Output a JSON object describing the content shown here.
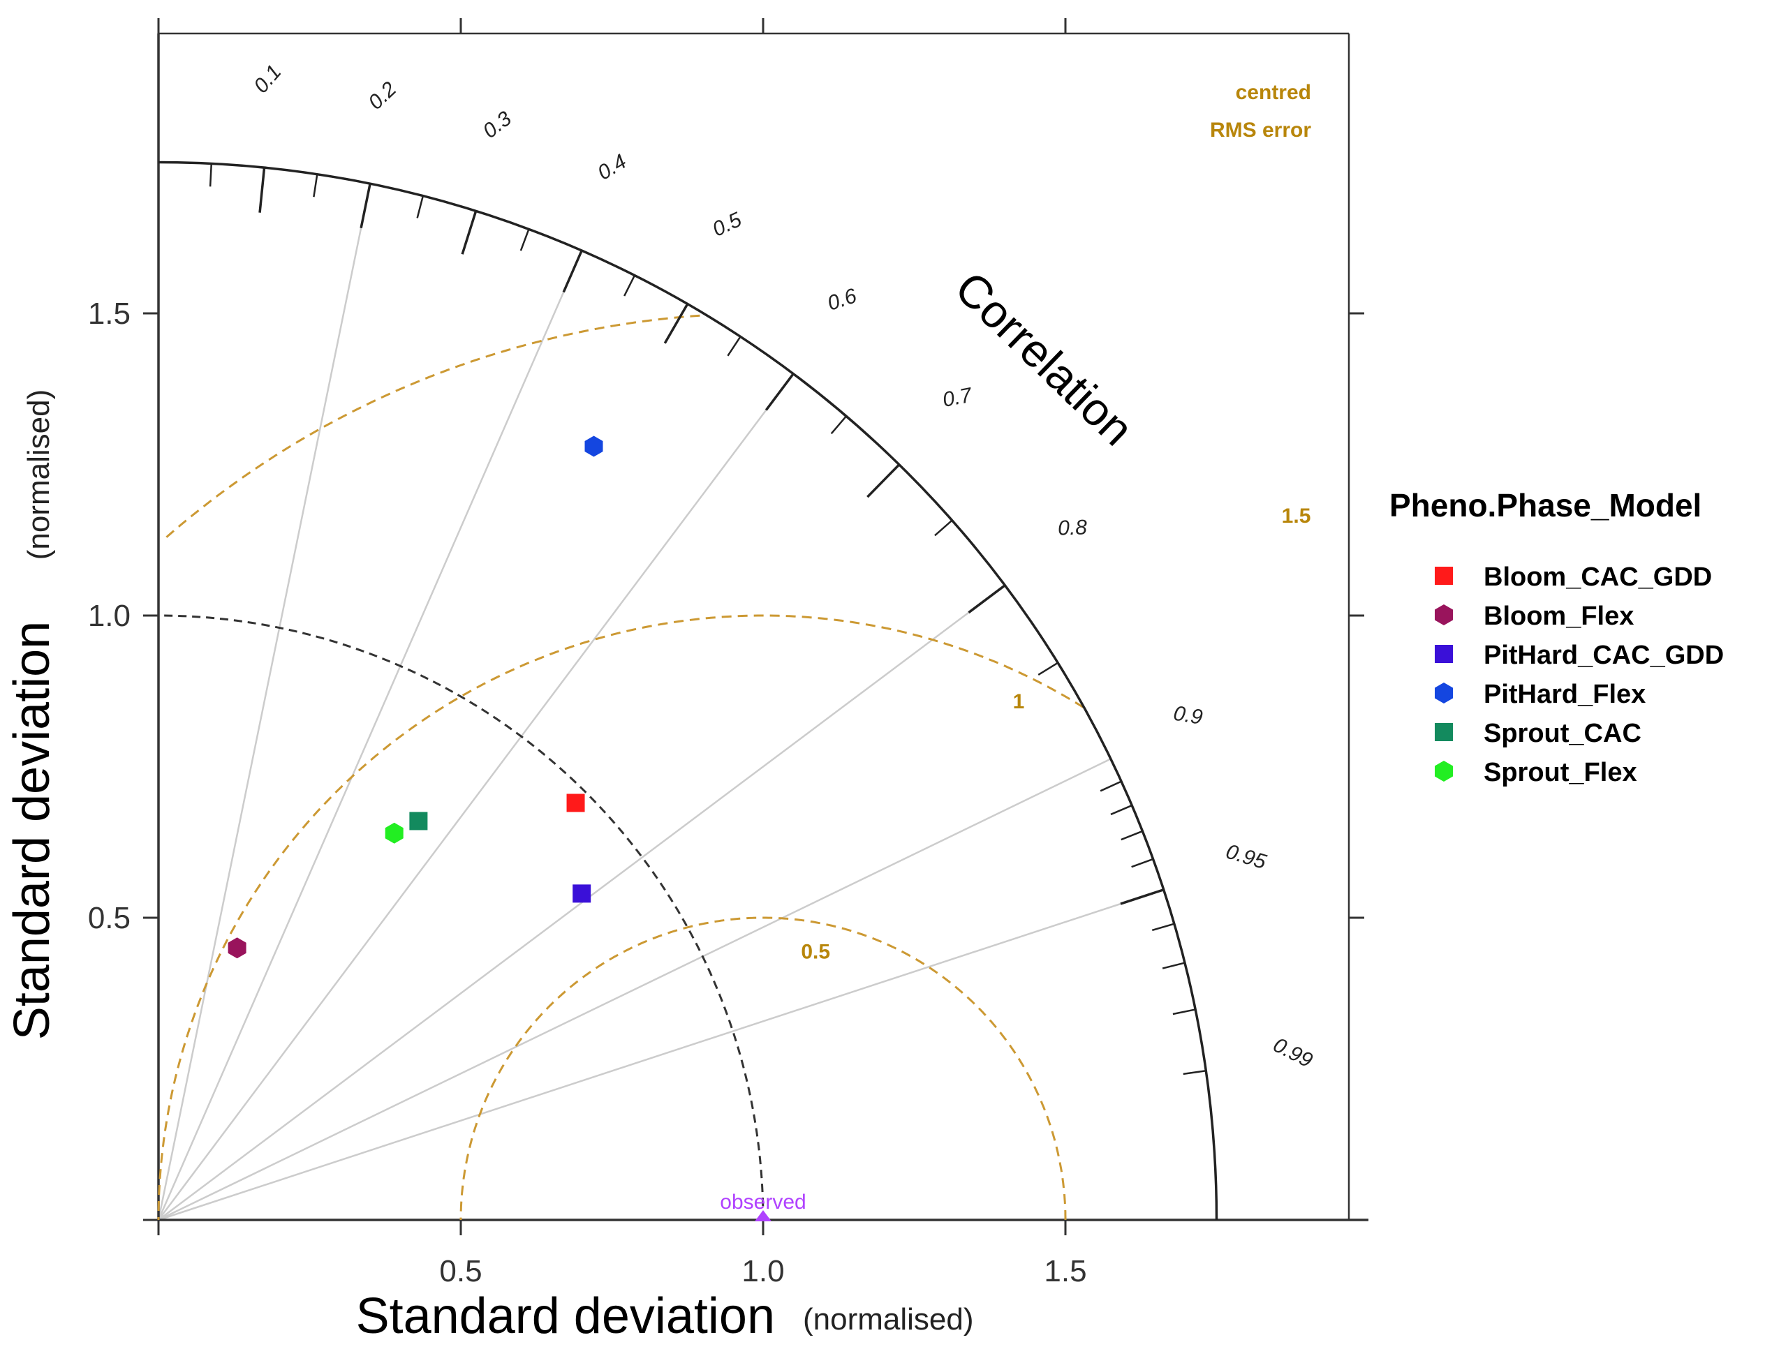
{
  "chart_data": {
    "type": "scatter",
    "subtype": "taylor-diagram",
    "xlabel": "Standard deviation",
    "xlabel_unit": "(normalised)",
    "ylabel": "Standard deviation",
    "ylabel_unit": "(normalised)",
    "correlation_title": "Correlation",
    "rms_title_line1": "centred",
    "rms_title_line2": "RMS error",
    "sd_max": 1.75,
    "xlim": [
      0,
      2
    ],
    "ylim": [
      0,
      2
    ],
    "sd_ticks": [
      0.5,
      1.0,
      1.5
    ],
    "sd_tick_labels": [
      "0.5",
      "1.0",
      "1.5"
    ],
    "correlation_ticks": [
      {
        "value": 0.1,
        "label": "0.1"
      },
      {
        "value": 0.2,
        "label": "0.2"
      },
      {
        "value": 0.3,
        "label": "0.3"
      },
      {
        "value": 0.4,
        "label": "0.4"
      },
      {
        "value": 0.5,
        "label": "0.5"
      },
      {
        "value": 0.6,
        "label": "0.6"
      },
      {
        "value": 0.7,
        "label": "0.7"
      },
      {
        "value": 0.8,
        "label": "0.8"
      },
      {
        "value": 0.9,
        "label": "0.9"
      },
      {
        "value": 0.95,
        "label": "0.95"
      },
      {
        "value": 0.99,
        "label": "0.99"
      }
    ],
    "correlation_lines": [
      0.2,
      0.4,
      0.6,
      0.8,
      0.9,
      0.95
    ],
    "rms_contours": [
      {
        "value": 0.5,
        "label": "0.5"
      },
      {
        "value": 1.0,
        "label": "1"
      },
      {
        "value": 1.5,
        "label": "1.5"
      }
    ],
    "observed": {
      "sd": 1.0,
      "label": "observed",
      "color": "#b042ff"
    },
    "reference_arc_sd": 1.0,
    "legend_title": "Pheno.Phase_Model",
    "legend_position": "right",
    "series": [
      {
        "name": "Bloom_CAC_GDD",
        "x": 0.69,
        "y": 0.69,
        "shape": "square",
        "color": "#ff1a1a"
      },
      {
        "name": "Bloom_Flex",
        "x": 0.13,
        "y": 0.45,
        "shape": "circle",
        "color": "#99145c"
      },
      {
        "name": "PitHard_CAC_GDD",
        "x": 0.7,
        "y": 0.54,
        "shape": "square",
        "color": "#3a10d8"
      },
      {
        "name": "PitHard_Flex",
        "x": 0.72,
        "y": 1.28,
        "shape": "circle",
        "color": "#1446e0"
      },
      {
        "name": "Sprout_CAC",
        "x": 0.43,
        "y": 0.66,
        "shape": "square",
        "color": "#138a5e"
      },
      {
        "name": "Sprout_Flex",
        "x": 0.39,
        "y": 0.64,
        "shape": "circle",
        "color": "#22ee22"
      }
    ]
  },
  "colors": {
    "rms": "#cc9933",
    "rms_label": "#b8860b",
    "ref_arc": "#333333",
    "corr_line": "#cccccc",
    "frame": "#333333"
  }
}
